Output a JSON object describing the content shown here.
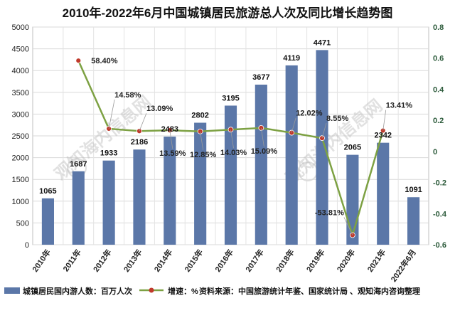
{
  "chart_data": {
    "type": "bar",
    "title": "2010年-2022年6月中国城镇居民旅游总人次及同比增长趋势图",
    "categories": [
      "2010年",
      "2011年",
      "2012年",
      "2013年",
      "2014年",
      "2015年",
      "2016年",
      "2017年",
      "2018年",
      "2019年",
      "2020年",
      "2021年",
      "2022年6月"
    ],
    "series": [
      {
        "name": "城镇居民国内游人数：百万人次",
        "type": "bar",
        "axis": "left",
        "color": "#5b77a8",
        "values": [
          1065,
          1687,
          1933,
          2186,
          2483,
          2802,
          3195,
          3677,
          4119,
          4471,
          2065,
          2342,
          1091
        ]
      },
      {
        "name": "增速：%",
        "type": "line",
        "axis": "right",
        "color": "#7da143",
        "marker_color": "#c0392b",
        "values": [
          null,
          0.584,
          0.1458,
          0.1309,
          0.1359,
          0.1285,
          0.1403,
          0.1509,
          0.1202,
          0.0855,
          -0.5381,
          0.1341,
          null
        ],
        "labels": [
          "",
          "58.40%",
          "14.58%",
          "13.09%",
          "13.59%",
          "12.85%",
          "14.03%",
          "15.09%",
          "12.02%",
          "8.55%",
          "-53.81%",
          "13.41%",
          ""
        ]
      }
    ],
    "ylim": [
      0,
      5000
    ],
    "yticks": [
      0,
      500,
      1000,
      1500,
      2000,
      2500,
      3000,
      3500,
      4000,
      4500,
      5000
    ],
    "y2lim": [
      -0.6,
      0.8
    ],
    "y2ticks": [
      "-0.6",
      "-0.4",
      "-0.2",
      "0",
      "0.2",
      "0.4",
      "0.6",
      "0.8"
    ],
    "grid": true,
    "legend_position": "bottom",
    "source": "资料来源：中国旅游统计年鉴、国家统计局 、观知海内咨询整理",
    "watermark": "观知海内信息网"
  }
}
